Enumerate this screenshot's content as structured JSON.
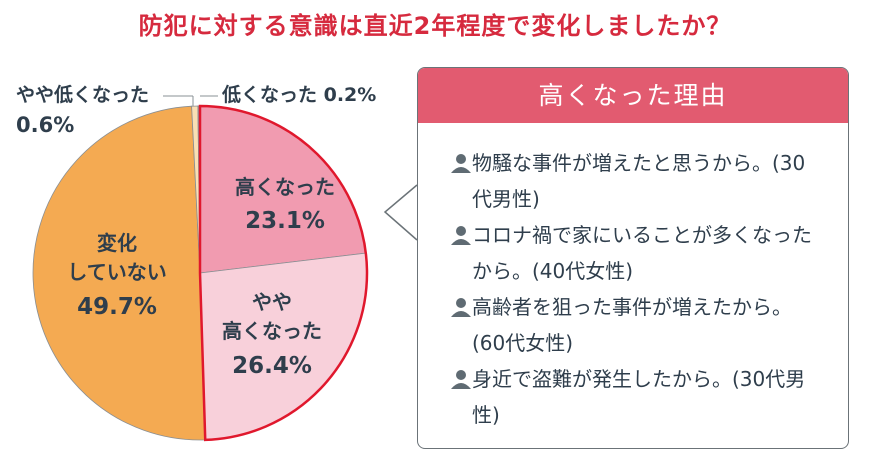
{
  "chart_data": {
    "type": "pie",
    "title": "防犯に対する意識は直近2年程度で変化しましたか？",
    "start": "top",
    "direction": "clockwise",
    "slices": [
      {
        "label": "高くなった",
        "value": 23.1,
        "value_label": "23.1%",
        "color": "#f19bb0",
        "highlight": true
      },
      {
        "label": "やや高くなった",
        "value": 26.4,
        "value_label": "26.4%",
        "color": "#f8d0da",
        "highlight": true
      },
      {
        "label": "変化していない",
        "value": 49.7,
        "value_label": "49.7%",
        "color": "#f4aa52",
        "highlight": false
      },
      {
        "label": "やや低くなった",
        "value": 0.6,
        "value_label": "0.6%",
        "color": "#f9dfb4",
        "highlight": false
      },
      {
        "label": "低くなった",
        "value": 0.2,
        "value_label": "0.2%",
        "color": "#9aa0a6",
        "highlight": false
      }
    ],
    "highlight_color": "#e0182d"
  },
  "labels": {
    "high": [
      "高くなった",
      "23.1%"
    ],
    "slightly_high": [
      "やや",
      "高くなった",
      "26.4%"
    ],
    "no_change": [
      "変化",
      "していない",
      "49.7%"
    ],
    "slightly_low_name": "やや低くなった",
    "slightly_low_value": "0.6%",
    "low": "低くなった 0.2%"
  },
  "callout": {
    "title": "高くなった理由",
    "icon": "person-icon",
    "reasons": [
      "物騒な事件が増えたと思うから。(30代男性)",
      "コロナ禍で家にいることが多くなったから。(40代女性)",
      "高齢者を狙った事件が増えたから。(60代女性)",
      "身近で盗難が発生したから。(30代男性)"
    ]
  }
}
